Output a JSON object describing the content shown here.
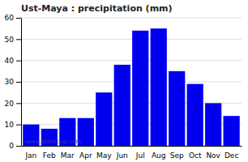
{
  "chart_data": {
    "type": "bar",
    "title": "Ust-Maya : precipitation (mm)",
    "categories": [
      "Jan",
      "Feb",
      "Mar",
      "Apr",
      "May",
      "Jun",
      "Jul",
      "Aug",
      "Sep",
      "Oct",
      "Nov",
      "Dec"
    ],
    "values": [
      10,
      8,
      13,
      13,
      25,
      38,
      54,
      55,
      35,
      29,
      20,
      14
    ],
    "color": "#0000ee",
    "ylim": [
      0,
      60
    ],
    "yticks": [
      0,
      10,
      20,
      30,
      40,
      50,
      60
    ],
    "grid": true,
    "annotations": [
      "www.allmetsat.com"
    ]
  }
}
